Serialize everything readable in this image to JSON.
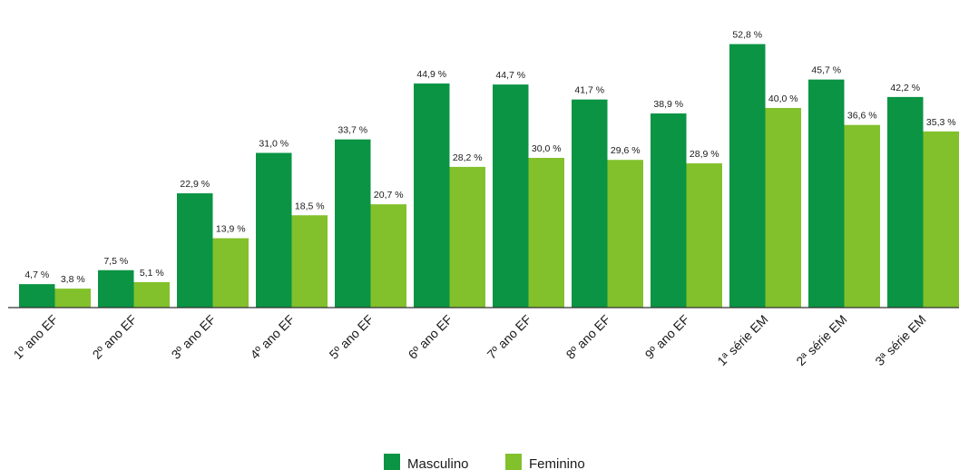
{
  "chart_data": {
    "type": "bar",
    "title": "",
    "xlabel": "",
    "ylabel": "",
    "ylim": [
      0,
      55
    ],
    "grid": false,
    "legend_position": "bottom-center",
    "categories": [
      "1º ano EF",
      "2º ano EF",
      "3º ano EF",
      "4º ano EF",
      "5º ano EF",
      "6º ano EF",
      "7º ano EF",
      "8º ano EF",
      "9º ano EF",
      "1ª série EM",
      "2ª série EM",
      "3ª série EM"
    ],
    "series": [
      {
        "name": "Masculino",
        "color": "#0a9443",
        "values": [
          4.7,
          7.5,
          22.9,
          31.0,
          33.7,
          44.9,
          44.7,
          41.7,
          38.9,
          52.8,
          45.7,
          42.2
        ],
        "labels": [
          "4,7 %",
          "7,5 %",
          "22,9 %",
          "31,0 %",
          "33,7 %",
          "44,9 %",
          "44,7 %",
          "41,7 %",
          "38,9 %",
          "52,8 %",
          "45,7 %",
          "42,2 %"
        ]
      },
      {
        "name": "Feminino",
        "color": "#82c12b",
        "values": [
          3.8,
          5.1,
          13.9,
          18.5,
          20.7,
          28.2,
          30.0,
          29.6,
          28.9,
          40.0,
          36.6,
          35.3
        ],
        "labels": [
          "3,8 %",
          "5,1 %",
          "13,9 %",
          "18,5 %",
          "20,7 %",
          "28,2 %",
          "30,0 %",
          "29,6 %",
          "28,9 %",
          "40,0 %",
          "36,6 %",
          "35,3 %"
        ]
      }
    ]
  }
}
